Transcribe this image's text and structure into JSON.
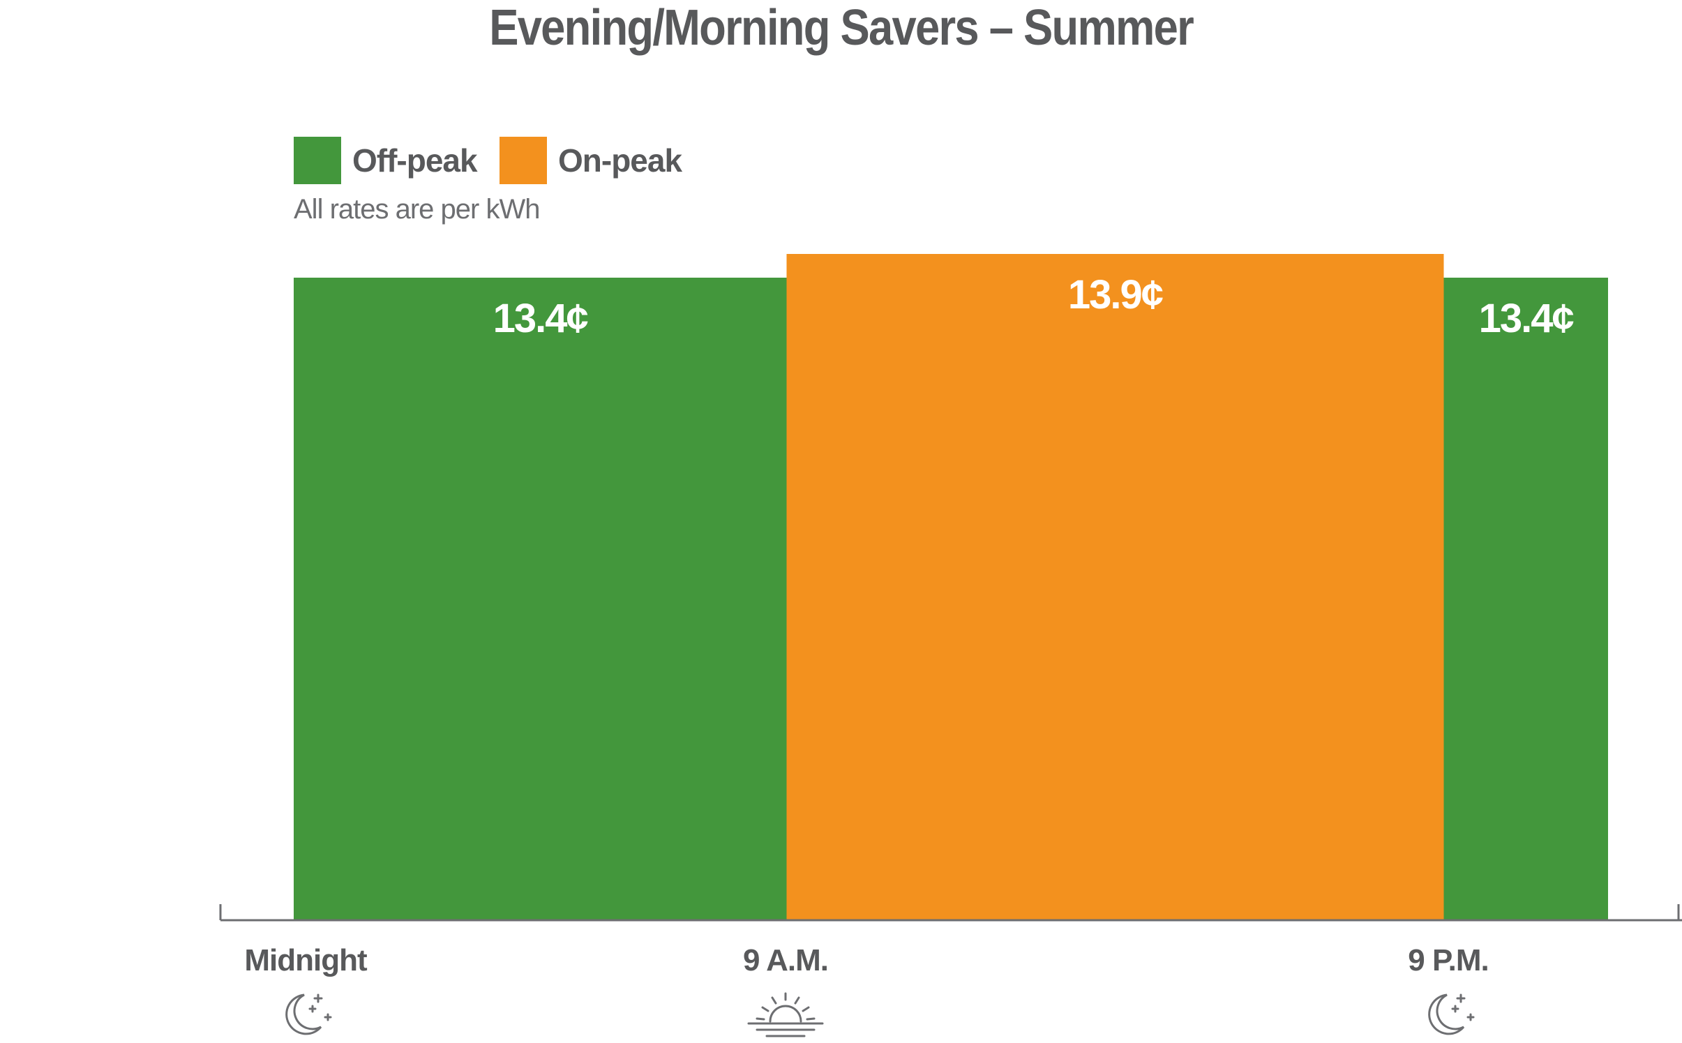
{
  "chart_data": {
    "type": "bar",
    "title": "Evening/Morning Savers – Summer",
    "subtitle": "All rates are per kWh",
    "unit": "¢",
    "legend": [
      {
        "name": "Off-peak",
        "color": "#43973c"
      },
      {
        "name": "On-peak",
        "color": "#f3911e"
      }
    ],
    "segments": [
      {
        "period": "Midnight – 9 A.M.",
        "series": "Off-peak",
        "start_hour": 0,
        "end_hour": 9,
        "value": 13.4,
        "label": "13.4¢"
      },
      {
        "period": "9 A.M. – 9 P.M.",
        "series": "On-peak",
        "start_hour": 9,
        "end_hour": 21,
        "value": 13.9,
        "label": "13.9¢"
      },
      {
        "period": "9 P.M. – Midnight",
        "series": "Off-peak",
        "start_hour": 21,
        "end_hour": 24,
        "value": 13.4,
        "label": "13.4¢"
      }
    ],
    "x_ticks": [
      {
        "label": "Midnight",
        "hour": 0,
        "icon": "moon-stars-icon"
      },
      {
        "label": "9 A.M.",
        "hour": 9,
        "icon": "sunrise-icon"
      },
      {
        "label": "9 P.M.",
        "hour": 21,
        "icon": "moon-stars-icon"
      }
    ],
    "xlim": [
      0,
      24
    ],
    "ylim": [
      0,
      13.9
    ],
    "grid": false,
    "legend_position": "top-left"
  },
  "colors": {
    "off_peak": "#43973c",
    "on_peak": "#f3911e",
    "text": "#58595b",
    "axis": "#6d6e71"
  }
}
